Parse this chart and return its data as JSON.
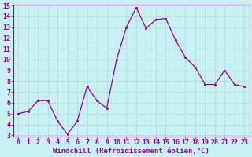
{
  "x": [
    0,
    1,
    2,
    3,
    4,
    5,
    6,
    7,
    8,
    9,
    10,
    11,
    12,
    13,
    14,
    15,
    16,
    17,
    18,
    19,
    20,
    21,
    22,
    23
  ],
  "y": [
    5.0,
    5.2,
    6.2,
    6.2,
    4.3,
    3.1,
    4.3,
    7.5,
    6.2,
    5.5,
    10.0,
    13.0,
    14.8,
    12.9,
    13.7,
    13.8,
    11.8,
    10.2,
    9.3,
    7.7,
    7.7,
    9.0,
    7.7,
    7.5
  ],
  "line_color": "#990099",
  "marker_color": "#990099",
  "bg_color": "#c8f0f0",
  "grid_color": "#b0dede",
  "xlabel": "Windchill (Refroidissement éolien,°C)",
  "xlabel_color": "#990099",
  "tick_color": "#990099",
  "axis_color": "#990099",
  "ylim": [
    3,
    15
  ],
  "xlim": [
    -0.5,
    23.5
  ],
  "yticks": [
    3,
    4,
    5,
    6,
    7,
    8,
    9,
    10,
    11,
    12,
    13,
    14,
    15
  ],
  "xticks": [
    0,
    1,
    2,
    3,
    4,
    5,
    6,
    7,
    8,
    9,
    10,
    11,
    12,
    13,
    14,
    15,
    16,
    17,
    18,
    19,
    20,
    21,
    22,
    23
  ],
  "font_size": 6.0,
  "xlabel_font_size": 6.5,
  "linewidth": 0.9,
  "markersize": 2.0
}
